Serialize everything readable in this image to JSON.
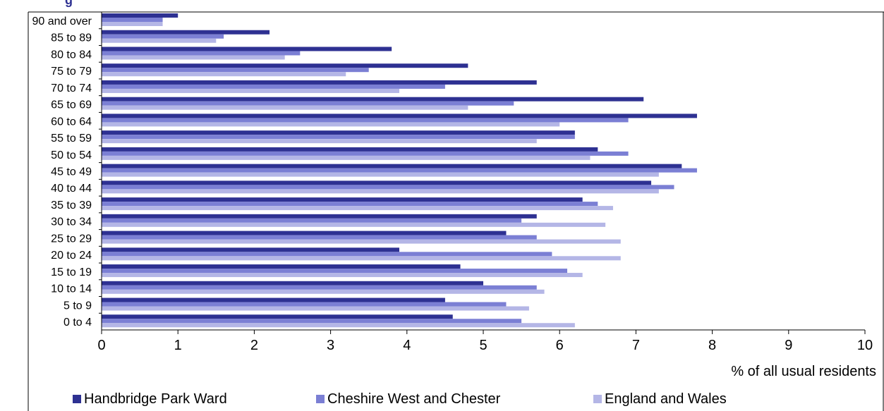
{
  "colors": {
    "frame": "#000000",
    "title": "#2e3192",
    "series": [
      "#2e3192",
      "#7b7fd4",
      "#b4b6e6"
    ]
  },
  "title_partial": "g",
  "legend_labels": [
    "Handbridge Park Ward",
    "Cheshire West and Chester",
    "England and Wales"
  ],
  "chart_data": {
    "type": "bar",
    "orientation": "horizontal",
    "categories": [
      "90 and over",
      "85 to 89",
      "80 to 84",
      "75 to 79",
      "70 to 74",
      "65 to 69",
      "60 to 64",
      "55 to 59",
      "50 to 54",
      "45 to 49",
      "40 to 44",
      "35 to 39",
      "30 to 34",
      "25 to 29",
      "20 to 24",
      "15 to 19",
      "10 to 14",
      "5 to 9",
      "0 to 4"
    ],
    "series": [
      {
        "name": "Handbridge Park Ward",
        "color": "#2e3192",
        "values": [
          1.0,
          2.2,
          3.8,
          4.8,
          5.7,
          7.1,
          7.8,
          6.2,
          6.5,
          7.6,
          7.2,
          6.3,
          5.7,
          5.3,
          3.9,
          4.7,
          5.0,
          4.5,
          4.6
        ]
      },
      {
        "name": "Cheshire West and Chester",
        "color": "#7b7fd4",
        "values": [
          0.8,
          1.6,
          2.6,
          3.5,
          4.5,
          5.4,
          6.9,
          6.2,
          6.9,
          7.8,
          7.5,
          6.5,
          5.5,
          5.7,
          5.9,
          6.1,
          5.7,
          5.3,
          5.5
        ]
      },
      {
        "name": "England and Wales",
        "color": "#b4b6e6",
        "values": [
          0.8,
          1.5,
          2.4,
          3.2,
          3.9,
          4.8,
          6.0,
          5.7,
          6.4,
          7.3,
          7.3,
          6.7,
          6.6,
          6.8,
          6.8,
          6.3,
          5.8,
          5.6,
          6.2
        ]
      }
    ],
    "xlim": [
      0,
      10
    ],
    "xticks": [
      "0",
      "1",
      "2",
      "3",
      "4",
      "5",
      "6",
      "7",
      "8",
      "9",
      "10"
    ],
    "xlabel": "% of all usual residents",
    "grid": false,
    "legend_position": "bottom"
  }
}
